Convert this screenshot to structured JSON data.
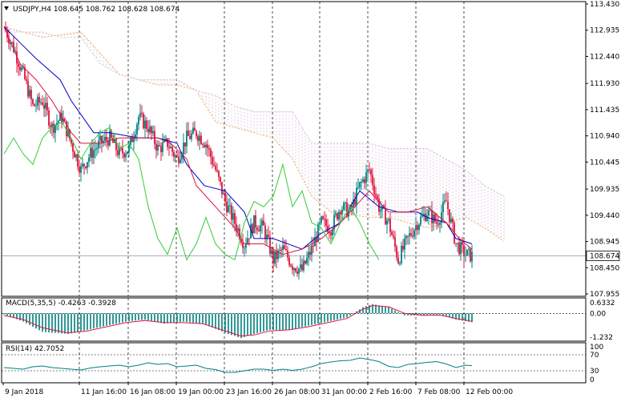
{
  "header": {
    "title": "USDJPY,H4  108.645 108.762 108.628 108.674"
  },
  "colors": {
    "bull": "#008080",
    "bear": "#dc143c",
    "kijun": "#0000cd",
    "tenkan": "#dc143c",
    "chikou": "#32cd32",
    "span_a": "#f4a460",
    "span_b": "#d8bfd8",
    "grid": "#000000",
    "macd_hist": "#008080",
    "macd_signal": "#dc143c",
    "rsi_line": "#008080"
  },
  "chart_data": [
    {
      "id": "price",
      "type": "candlestick",
      "title": "USDJPY,H4  108.645 108.762 108.628 108.674",
      "ylim": [
        107.955,
        113.43
      ],
      "yticks": [
        "113.430",
        "112.935",
        "112.440",
        "111.930",
        "111.435",
        "110.940",
        "110.445",
        "109.935",
        "109.440",
        "108.945",
        "108.450",
        "107.955"
      ],
      "current_price": "108.674",
      "close_path": [
        [
          0,
          113.0
        ],
        [
          6,
          112.6
        ],
        [
          12,
          112.1
        ],
        [
          18,
          111.5
        ],
        [
          24,
          111.6
        ],
        [
          30,
          111.1
        ],
        [
          36,
          111.3
        ],
        [
          42,
          110.8
        ],
        [
          48,
          110.3
        ],
        [
          54,
          110.6
        ],
        [
          60,
          110.8
        ],
        [
          66,
          110.9
        ],
        [
          72,
          110.6
        ],
        [
          78,
          110.7
        ],
        [
          84,
          111.3
        ],
        [
          90,
          111.1
        ],
        [
          96,
          110.7
        ],
        [
          102,
          110.8
        ],
        [
          108,
          110.5
        ],
        [
          114,
          110.9
        ],
        [
          120,
          111.0
        ],
        [
          126,
          110.8
        ],
        [
          132,
          110.3
        ],
        [
          138,
          109.7
        ],
        [
          144,
          109.3
        ],
        [
          150,
          108.9
        ],
        [
          156,
          109.3
        ],
        [
          162,
          109.2
        ],
        [
          168,
          108.6
        ],
        [
          174,
          108.8
        ],
        [
          180,
          108.5
        ],
        [
          186,
          108.4
        ],
        [
          192,
          108.8
        ],
        [
          198,
          109.3
        ],
        [
          204,
          109.2
        ],
        [
          210,
          109.6
        ],
        [
          216,
          109.5
        ],
        [
          222,
          110.0
        ],
        [
          228,
          110.3
        ],
        [
          234,
          109.6
        ],
        [
          240,
          109.3
        ],
        [
          246,
          108.6
        ],
        [
          252,
          109.0
        ],
        [
          258,
          109.3
        ],
        [
          264,
          109.5
        ],
        [
          270,
          109.3
        ],
        [
          276,
          109.7
        ],
        [
          282,
          108.9
        ],
        [
          288,
          108.7
        ],
        [
          292,
          108.674
        ]
      ],
      "kijun_path": [
        [
          0,
          113.0
        ],
        [
          10,
          112.7
        ],
        [
          20,
          112.4
        ],
        [
          35,
          112.0
        ],
        [
          42,
          111.6
        ],
        [
          56,
          111.0
        ],
        [
          66,
          111.0
        ],
        [
          84,
          110.9
        ],
        [
          96,
          110.9
        ],
        [
          108,
          110.8
        ],
        [
          114,
          110.4
        ],
        [
          125,
          110.0
        ],
        [
          138,
          109.9
        ],
        [
          150,
          109.5
        ],
        [
          156,
          109.0
        ],
        [
          168,
          109.0
        ],
        [
          186,
          108.8
        ],
        [
          198,
          109.1
        ],
        [
          210,
          109.3
        ],
        [
          222,
          109.9
        ],
        [
          234,
          109.6
        ],
        [
          246,
          109.5
        ],
        [
          258,
          109.5
        ],
        [
          264,
          109.4
        ],
        [
          276,
          109.3
        ],
        [
          282,
          109.0
        ],
        [
          292,
          108.9
        ]
      ],
      "tenkan_path": [
        [
          0,
          113.0
        ],
        [
          10,
          112.3
        ],
        [
          20,
          112.0
        ],
        [
          30,
          111.6
        ],
        [
          42,
          111.0
        ],
        [
          48,
          110.8
        ],
        [
          60,
          110.8
        ],
        [
          72,
          110.9
        ],
        [
          84,
          110.9
        ],
        [
          96,
          110.9
        ],
        [
          104,
          110.8
        ],
        [
          114,
          110.5
        ],
        [
          120,
          110.0
        ],
        [
          132,
          109.6
        ],
        [
          144,
          109.2
        ],
        [
          150,
          108.9
        ],
        [
          162,
          108.9
        ],
        [
          174,
          108.7
        ],
        [
          186,
          108.8
        ],
        [
          198,
          109.0
        ],
        [
          210,
          109.3
        ],
        [
          222,
          109.7
        ],
        [
          228,
          109.9
        ],
        [
          240,
          109.5
        ],
        [
          252,
          109.5
        ],
        [
          264,
          109.6
        ],
        [
          276,
          109.3
        ],
        [
          284,
          109.0
        ],
        [
          292,
          108.8
        ]
      ],
      "chikou_path": [
        [
          0,
          110.6
        ],
        [
          6,
          110.9
        ],
        [
          12,
          110.6
        ],
        [
          18,
          110.4
        ],
        [
          24,
          110.9
        ],
        [
          30,
          111.1
        ],
        [
          36,
          111.2
        ],
        [
          42,
          110.9
        ],
        [
          48,
          110.5
        ],
        [
          54,
          110.8
        ],
        [
          60,
          111.0
        ],
        [
          66,
          111.1
        ],
        [
          72,
          110.7
        ],
        [
          78,
          110.8
        ],
        [
          84,
          110.5
        ],
        [
          90,
          109.6
        ],
        [
          96,
          109.0
        ],
        [
          102,
          108.7
        ],
        [
          108,
          109.2
        ],
        [
          114,
          108.6
        ],
        [
          120,
          108.9
        ],
        [
          126,
          109.4
        ],
        [
          132,
          108.9
        ],
        [
          138,
          108.7
        ],
        [
          144,
          108.6
        ],
        [
          150,
          109.3
        ],
        [
          156,
          109.7
        ],
        [
          162,
          109.6
        ],
        [
          168,
          109.8
        ],
        [
          174,
          110.4
        ],
        [
          180,
          109.6
        ],
        [
          186,
          109.9
        ],
        [
          192,
          109.3
        ],
        [
          198,
          109.2
        ],
        [
          204,
          108.9
        ],
        [
          210,
          109.3
        ],
        [
          216,
          109.6
        ],
        [
          222,
          109.3
        ],
        [
          228,
          108.9
        ],
        [
          234,
          108.6
        ]
      ],
      "span_a_path": [
        [
          0,
          113.0
        ],
        [
          12,
          112.9
        ],
        [
          24,
          112.8
        ],
        [
          36,
          112.85
        ],
        [
          48,
          112.9
        ],
        [
          60,
          112.5
        ],
        [
          72,
          112.1
        ],
        [
          84,
          112.0
        ],
        [
          96,
          111.9
        ],
        [
          108,
          111.9
        ],
        [
          120,
          111.8
        ],
        [
          132,
          111.2
        ],
        [
          144,
          111.1
        ],
        [
          156,
          111.0
        ],
        [
          168,
          110.9
        ],
        [
          180,
          110.5
        ],
        [
          192,
          109.8
        ],
        [
          204,
          109.5
        ],
        [
          216,
          109.45
        ],
        [
          228,
          109.4
        ],
        [
          240,
          109.4
        ],
        [
          252,
          109.3
        ],
        [
          264,
          109.2
        ],
        [
          276,
          109.3
        ],
        [
          288,
          109.4
        ],
        [
          300,
          109.2
        ],
        [
          312,
          108.95
        ]
      ],
      "span_b_path": [
        [
          0,
          112.9
        ],
        [
          12,
          112.9
        ],
        [
          24,
          112.9
        ],
        [
          36,
          112.8
        ],
        [
          48,
          112.8
        ],
        [
          60,
          112.3
        ],
        [
          72,
          112.1
        ],
        [
          84,
          112.0
        ],
        [
          96,
          112.0
        ],
        [
          108,
          112.0
        ],
        [
          120,
          111.8
        ],
        [
          132,
          111.7
        ],
        [
          144,
          111.5
        ],
        [
          156,
          111.4
        ],
        [
          168,
          111.4
        ],
        [
          180,
          111.4
        ],
        [
          192,
          110.8
        ],
        [
          204,
          110.8
        ],
        [
          216,
          110.8
        ],
        [
          228,
          110.8
        ],
        [
          240,
          110.7
        ],
        [
          252,
          110.7
        ],
        [
          264,
          110.7
        ],
        [
          276,
          110.5
        ],
        [
          288,
          110.3
        ],
        [
          300,
          110.0
        ],
        [
          312,
          109.8
        ]
      ]
    },
    {
      "id": "macd",
      "type": "bar",
      "title": "MACD(5,35,5) -0.4263 -0.3928",
      "ylim": [
        -1.232,
        0.6332
      ],
      "yticks": [
        "0.6332",
        "0.00",
        "-1.232"
      ],
      "hist_path": [
        [
          0,
          -0.05
        ],
        [
          12,
          -0.4
        ],
        [
          24,
          -0.9
        ],
        [
          40,
          -1.0
        ],
        [
          52,
          -0.8
        ],
        [
          64,
          -0.6
        ],
        [
          76,
          -0.4
        ],
        [
          88,
          -0.3
        ],
        [
          100,
          -0.5
        ],
        [
          112,
          -0.4
        ],
        [
          124,
          -0.5
        ],
        [
          140,
          -1.0
        ],
        [
          148,
          -1.2
        ],
        [
          156,
          -1.0
        ],
        [
          166,
          -0.8
        ],
        [
          178,
          -0.8
        ],
        [
          190,
          -0.6
        ],
        [
          202,
          -0.4
        ],
        [
          214,
          -0.2
        ],
        [
          224,
          0.3
        ],
        [
          230,
          0.45
        ],
        [
          240,
          0.3
        ],
        [
          250,
          -0.1
        ],
        [
          262,
          -0.1
        ],
        [
          272,
          -0.05
        ],
        [
          282,
          -0.3
        ],
        [
          292,
          -0.43
        ]
      ],
      "signal_path": [
        [
          0,
          -0.1
        ],
        [
          12,
          -0.3
        ],
        [
          24,
          -0.7
        ],
        [
          40,
          -0.95
        ],
        [
          52,
          -0.85
        ],
        [
          64,
          -0.65
        ],
        [
          76,
          -0.45
        ],
        [
          88,
          -0.35
        ],
        [
          100,
          -0.45
        ],
        [
          112,
          -0.45
        ],
        [
          124,
          -0.5
        ],
        [
          140,
          -0.9
        ],
        [
          148,
          -1.1
        ],
        [
          156,
          -1.05
        ],
        [
          166,
          -0.85
        ],
        [
          178,
          -0.8
        ],
        [
          190,
          -0.65
        ],
        [
          202,
          -0.45
        ],
        [
          214,
          -0.25
        ],
        [
          224,
          0.2
        ],
        [
          230,
          0.38
        ],
        [
          240,
          0.32
        ],
        [
          250,
          0.0
        ],
        [
          262,
          -0.1
        ],
        [
          272,
          -0.08
        ],
        [
          282,
          -0.25
        ],
        [
          292,
          -0.39
        ]
      ]
    },
    {
      "id": "rsi",
      "type": "line",
      "title": "RSI(14) 42.7052",
      "ylim": [
        0,
        100
      ],
      "yticks": [
        "100",
        "70",
        "30",
        "0"
      ],
      "levels": [
        70,
        30
      ],
      "rsi_path": [
        [
          0,
          38
        ],
        [
          6,
          36
        ],
        [
          12,
          34
        ],
        [
          18,
          40
        ],
        [
          24,
          42
        ],
        [
          30,
          38
        ],
        [
          36,
          36
        ],
        [
          42,
          34
        ],
        [
          48,
          32
        ],
        [
          54,
          37
        ],
        [
          60,
          40
        ],
        [
          66,
          42
        ],
        [
          72,
          44
        ],
        [
          78,
          40
        ],
        [
          84,
          44
        ],
        [
          90,
          50
        ],
        [
          96,
          46
        ],
        [
          102,
          48
        ],
        [
          108,
          40
        ],
        [
          114,
          42
        ],
        [
          120,
          44
        ],
        [
          126,
          36
        ],
        [
          132,
          33
        ],
        [
          138,
          26
        ],
        [
          144,
          26
        ],
        [
          150,
          30
        ],
        [
          156,
          34
        ],
        [
          162,
          34
        ],
        [
          168,
          31
        ],
        [
          174,
          34
        ],
        [
          180,
          31
        ],
        [
          186,
          34
        ],
        [
          192,
          40
        ],
        [
          198,
          48
        ],
        [
          204,
          52
        ],
        [
          210,
          55
        ],
        [
          216,
          56
        ],
        [
          222,
          62
        ],
        [
          228,
          58
        ],
        [
          234,
          53
        ],
        [
          240,
          41
        ],
        [
          246,
          38
        ],
        [
          252,
          46
        ],
        [
          258,
          48
        ],
        [
          264,
          51
        ],
        [
          270,
          53
        ],
        [
          276,
          47
        ],
        [
          282,
          38
        ],
        [
          288,
          44
        ],
        [
          292,
          42.7
        ]
      ]
    }
  ],
  "x_axis": {
    "labels": [
      "9 Jan 2018",
      "11 Jan 16:00",
      "16 Jan 08:00",
      "19 Jan 00:00",
      "23 Jan 16:00",
      "26 Jan 08:00",
      "31 Jan 00:00",
      "2 Feb 16:00",
      "7 Feb 08:00",
      "12 Feb 00:00"
    ]
  }
}
